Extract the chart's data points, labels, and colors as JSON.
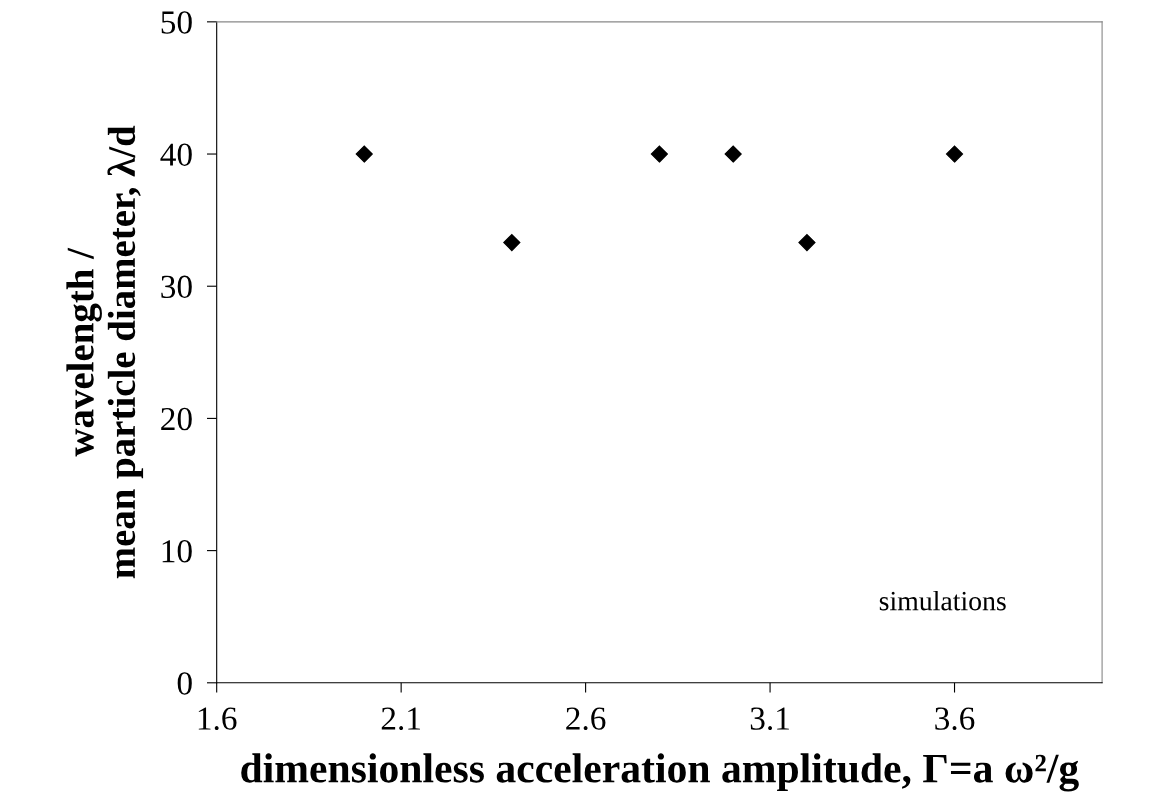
{
  "chart_data": {
    "type": "scatter",
    "xlabel": "dimensionless acceleration amplitude, Γ=a ω²/g",
    "ylabel": "wavelength /\nmean particle diameter, λ/d",
    "x": [
      2.0,
      2.4,
      2.8,
      3.0,
      3.2,
      3.6
    ],
    "values": [
      40,
      33.3,
      40,
      40,
      33.3,
      40
    ],
    "color": "#000000",
    "marker": "diamond",
    "xlim": [
      1.6,
      4.0
    ],
    "xticks": [
      1.6,
      2.1,
      2.6,
      3.1,
      3.6
    ],
    "ylim": [
      0,
      50
    ],
    "yticks": [
      0,
      10,
      20,
      30,
      40,
      50
    ],
    "annotations": [
      "simulations"
    ]
  }
}
